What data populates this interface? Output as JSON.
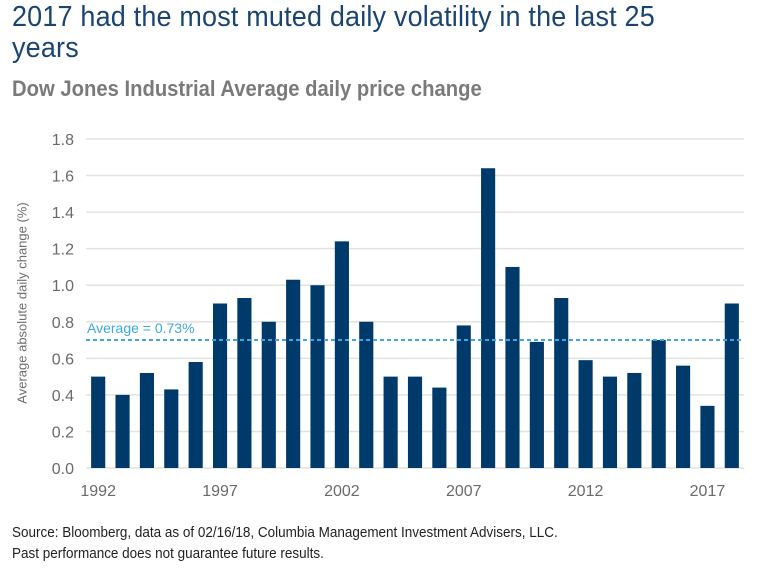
{
  "header": {
    "title": "2017 had the most muted daily volatility in the last 25 years",
    "subtitle": "Dow Jones Industrial Average daily price change"
  },
  "footer": {
    "source": "Source: Bloomberg, data as of 02/16/18, Columbia Management Investment Advisers, LLC.",
    "disclaimer": "Past performance does not guarantee future results."
  },
  "colors": {
    "bar": "#003a6b",
    "average_line": "#3fa7de",
    "title": "#1a4472",
    "gridline": "#e2e2e2"
  },
  "chart_data": {
    "type": "bar",
    "title": "2017 had the most muted daily volatility in the last 25 years",
    "subtitle": "Dow Jones Industrial Average daily price change",
    "xlabel": "",
    "ylabel": "Average absolute daily change (%)",
    "ylim": [
      0,
      1.8
    ],
    "yticks": [
      "0.0",
      "0.2",
      "0.4",
      "0.6",
      "0.8",
      "1.0",
      "1.2",
      "1.4",
      "1.6",
      "1.8"
    ],
    "ytick_values": [
      0,
      0.2,
      0.4,
      0.6,
      0.8,
      1.0,
      1.2,
      1.4,
      1.6,
      1.8
    ],
    "grid": true,
    "legend": "none",
    "categories": [
      "1992",
      "1993",
      "1994",
      "1995",
      "1996",
      "1997",
      "1998",
      "1999",
      "2000",
      "2001",
      "2002",
      "2003",
      "2004",
      "2005",
      "2006",
      "2007",
      "2008",
      "2009",
      "2010",
      "2011",
      "2012",
      "2013",
      "2014",
      "2015",
      "2016",
      "2017",
      "2018"
    ],
    "xtick_labels": [
      "1992",
      "1997",
      "2002",
      "2007",
      "2012",
      "2017"
    ],
    "values": [
      0.5,
      0.4,
      0.52,
      0.43,
      0.58,
      0.9,
      0.93,
      0.8,
      1.03,
      1.0,
      1.24,
      0.8,
      0.5,
      0.5,
      0.44,
      0.78,
      1.64,
      1.1,
      0.69,
      0.93,
      0.59,
      0.5,
      0.52,
      0.7,
      0.56,
      0.34,
      0.9
    ],
    "annotations": [
      {
        "type": "hline",
        "label": "Average = 0.73%",
        "value": 0.73,
        "drawn_at": 0.7,
        "style": "dashed"
      }
    ]
  }
}
